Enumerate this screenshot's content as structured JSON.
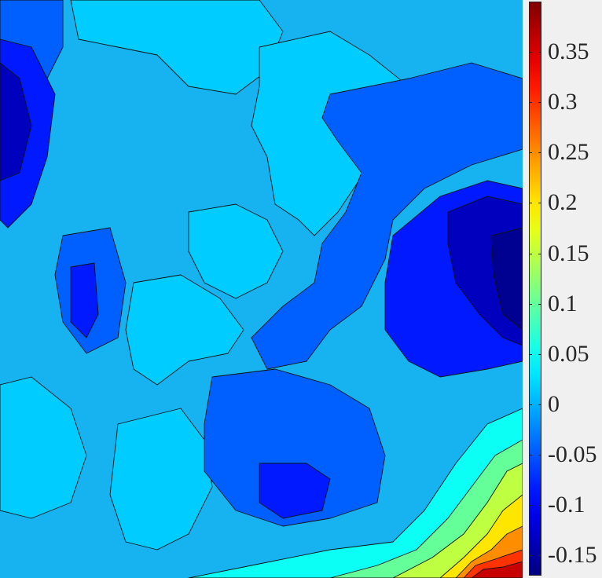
{
  "chart_data": {
    "type": "heatmap",
    "style": "filled-contour",
    "colormap": "jet",
    "title": "",
    "xlabel": "",
    "ylabel": "",
    "colorbar": {
      "location": "right",
      "range": [
        -0.17,
        0.4
      ],
      "ticks": [
        0.35,
        0.3,
        0.25,
        0.2,
        0.15,
        0.1,
        0.05,
        0,
        -0.05,
        -0.1,
        -0.15
      ],
      "tick_labels": [
        "0.35",
        "0.3",
        "0.25",
        "0.2",
        "0.15",
        "0.1",
        "0.05",
        "0",
        "-0.05",
        "-0.1",
        "-0.15"
      ]
    },
    "contour_levels": [
      -0.15,
      -0.1,
      -0.05,
      0,
      0.05,
      0.1,
      0.15,
      0.2,
      0.25,
      0.3,
      0.35
    ],
    "regions": [
      {
        "name": "dominant-field",
        "value_range": [
          -0.05,
          0
        ],
        "area": "most of field, central band"
      },
      {
        "name": "low-left",
        "value_range": [
          -0.13,
          -0.08
        ],
        "area": "upper-left edge"
      },
      {
        "name": "low-right",
        "value_range": [
          -0.17,
          -0.1
        ],
        "area": "right edge, middle height"
      },
      {
        "name": "high-corner",
        "value_range": [
          0.05,
          0.4
        ],
        "area": "bottom-right corner"
      },
      {
        "name": "slightly-positive-patches",
        "value_range": [
          0,
          0.05
        ],
        "area": "top center, lower-left, scattered"
      }
    ]
  }
}
